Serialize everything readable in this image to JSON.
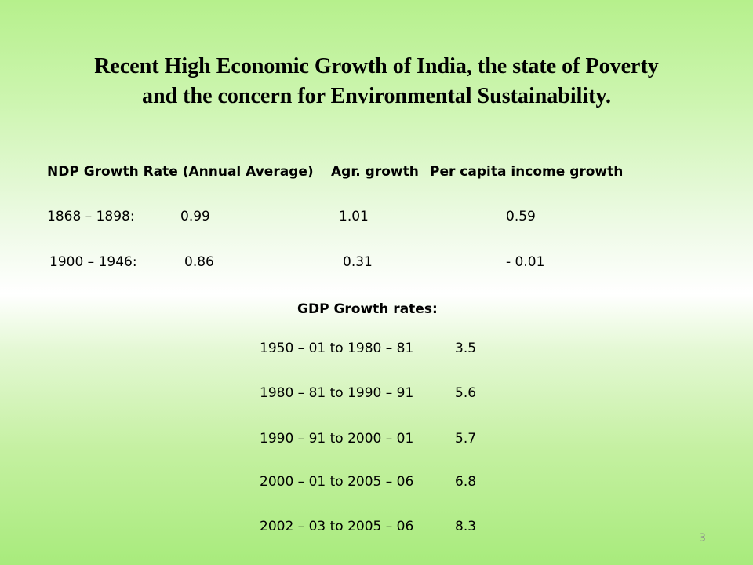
{
  "slide": {
    "title_line1": "Recent High Economic Growth of India, the state of Poverty",
    "title_line2": "and the concern for Environmental Sustainability.",
    "page_number": "3"
  },
  "historical": {
    "headers": [
      "NDP Growth Rate (Annual Average)",
      "Agr. growth",
      "Per capita income growth"
    ],
    "rows": [
      {
        "period": "1868 – 1898:",
        "ndp": "0.99",
        "agr": "1.01",
        "per_capita": "0.59"
      },
      {
        "period": "1900 – 1946:",
        "ndp": "0.86",
        "agr": "0.31",
        "per_capita": "- 0.01"
      }
    ]
  },
  "gdp": {
    "heading": "GDP Growth rates:",
    "rows": [
      {
        "period": "1950 – 01 to 1980 – 81",
        "rate": "3.5"
      },
      {
        "period": "1980 – 81 to 1990 – 91",
        "rate": "5.6"
      },
      {
        "period": "1990 – 91 to 2000 – 01",
        "rate": "5.7"
      },
      {
        "period": "2000 – 01 to 2005 – 06",
        "rate": "6.8"
      },
      {
        "period": "2002 – 03 to 2005 – 06",
        "rate": "8.3"
      }
    ]
  }
}
